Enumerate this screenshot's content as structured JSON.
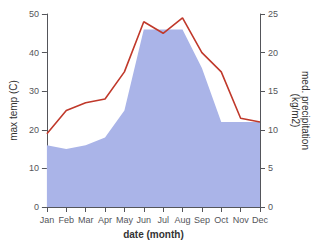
{
  "chart_data": {
    "type": "line",
    "xlabel": "date (month)",
    "ylabel": "max temp (C)",
    "y2label": "med. precipitation\n(kg/m2)",
    "categories": [
      "Jan",
      "Feb",
      "Mar",
      "Apr",
      "May",
      "Jun",
      "Jul",
      "Aug",
      "Sep",
      "Oct",
      "Nov",
      "Dec"
    ],
    "series": [
      {
        "type": "area",
        "axis": "y2",
        "color": "#aab4e8",
        "values": [
          8,
          7.5,
          8,
          9,
          12.5,
          23,
          23,
          23,
          18,
          11,
          11,
          11
        ]
      },
      {
        "type": "line",
        "color": "#c0392b",
        "values": [
          19,
          25,
          27,
          28,
          35,
          48,
          45,
          49,
          40,
          35,
          23,
          22
        ]
      }
    ],
    "ylim": [
      0,
      50
    ],
    "yticks": [
      0,
      10,
      20,
      30,
      40,
      50
    ],
    "y2lim": [
      0,
      25
    ],
    "y2ticks": [
      0,
      5,
      10,
      15,
      20,
      25
    ],
    "grid": false
  }
}
